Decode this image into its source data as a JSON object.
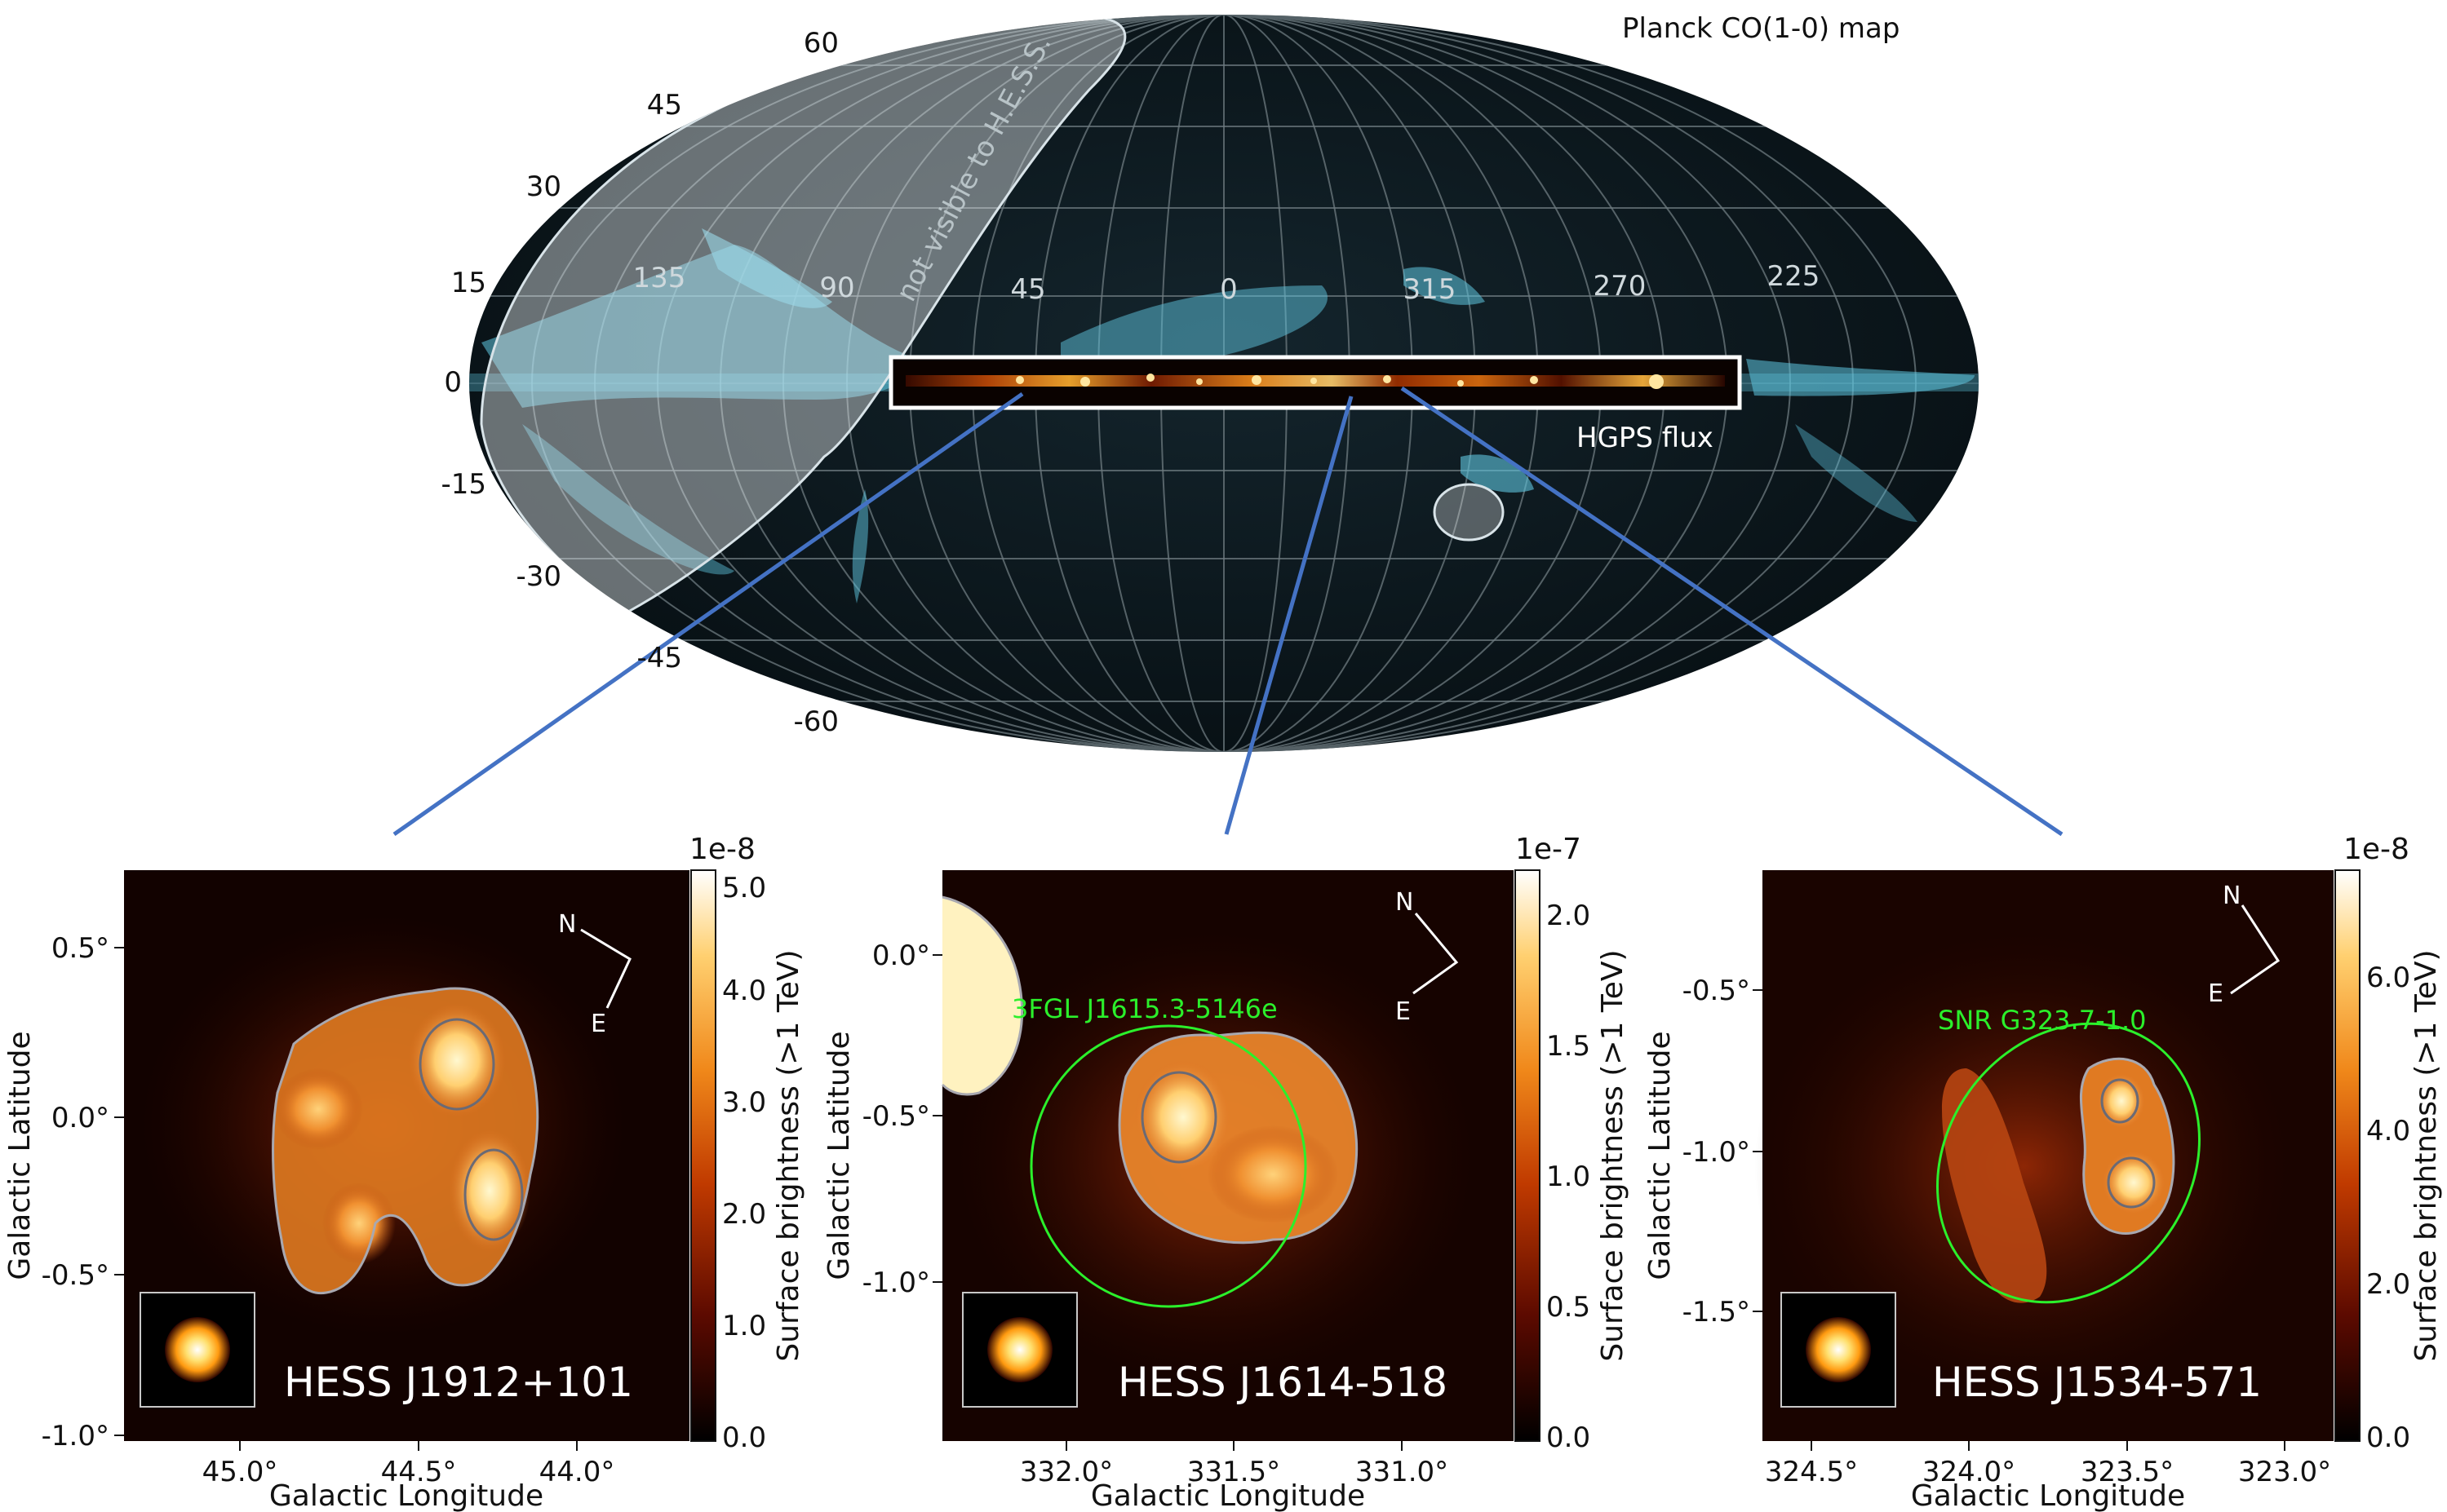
{
  "skymap": {
    "title": "Planck CO(1-0) map",
    "hgps_label": "HGPS flux",
    "not_visible_label": "not visible to H.E.S.S.",
    "latitude_labels": [
      "60",
      "45",
      "30",
      "15",
      "0",
      "-15",
      "-30",
      "-45",
      "-60"
    ],
    "longitude_labels": [
      "135",
      "90",
      "45",
      "0",
      "315",
      "270",
      "225"
    ]
  },
  "panels": [
    {
      "source_name": "HESS J1912+101",
      "scale_exponent": "1e-8",
      "colorbar_label": "Surface brightness (>1 TeV)",
      "colorbar_ticks": [
        "0.0",
        "1.0",
        "2.0",
        "3.0",
        "4.0",
        "5.0"
      ],
      "x_ticks": [
        "45.0°",
        "44.5°",
        "44.0°"
      ],
      "y_ticks": [
        "0.5°",
        "0.0°",
        "-0.5°",
        "-1.0°"
      ],
      "xlabel": "Galactic Longitude",
      "ylabel": "Galactic Latitude",
      "compass": {
        "north": "N",
        "east": "E"
      }
    },
    {
      "source_name": "HESS J1614-518",
      "scale_exponent": "1e-7",
      "colorbar_label": "Surface brightness (>1 TeV)",
      "colorbar_ticks": [
        "0.0",
        "0.5",
        "1.0",
        "1.5",
        "2.0"
      ],
      "x_ticks": [
        "332.0°",
        "331.5°",
        "331.0°"
      ],
      "y_ticks": [
        "0.0°",
        "-0.5°",
        "-1.0°"
      ],
      "xlabel": "Galactic Longitude",
      "ylabel": "Galactic Latitude",
      "compass": {
        "north": "N",
        "east": "E"
      },
      "annotation": "3FGL J1615.3-5146e"
    },
    {
      "source_name": "HESS J1534-571",
      "scale_exponent": "1e-8",
      "colorbar_label": "Surface brightness (>1 TeV)",
      "colorbar_ticks": [
        "0.0",
        "2.0",
        "4.0",
        "6.0"
      ],
      "x_ticks": [
        "324.5°",
        "324.0°",
        "323.5°",
        "323.0°"
      ],
      "y_ticks": [
        "-0.5°",
        "-1.0°",
        "-1.5°"
      ],
      "xlabel": "Galactic Longitude",
      "ylabel": "Galactic Latitude",
      "compass": {
        "north": "N",
        "east": "E"
      },
      "annotation": "SNR G323.7-1.0"
    }
  ],
  "colors": {
    "connector": "#4472c4",
    "co_emission": "#5fc6e0",
    "annotation_green": "#2bf02b",
    "sky_background": "#0b1a20"
  }
}
